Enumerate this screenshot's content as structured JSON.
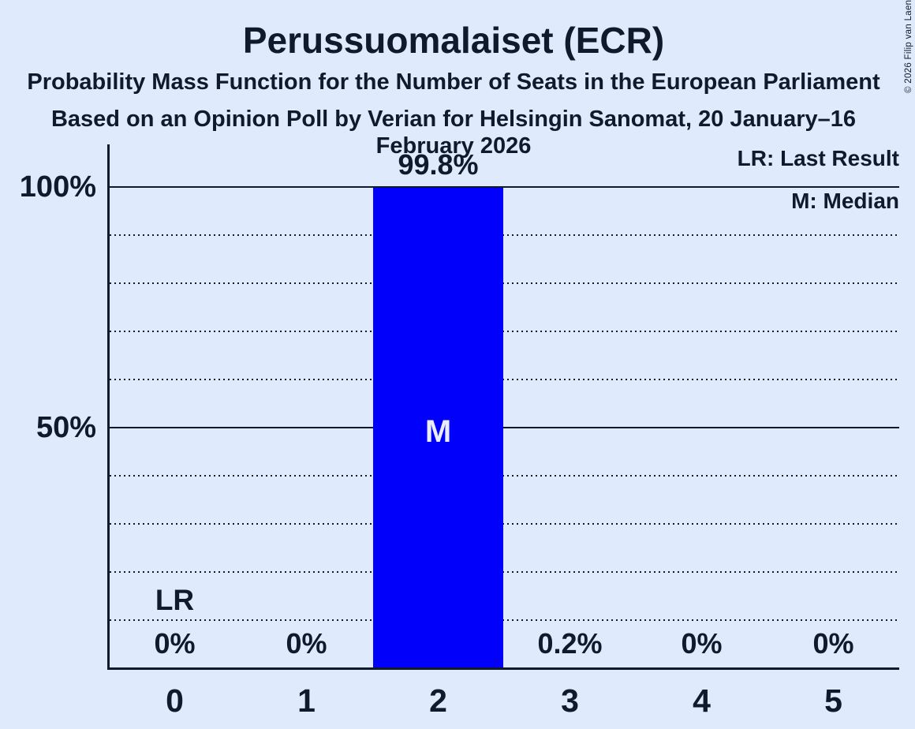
{
  "title": "Perussuomalaiset (ECR)",
  "subtitle": "Probability Mass Function for the Number of Seats in the European Parliament",
  "source_line": "Based on an Opinion Poll by Verian for Helsingin Sanomat, 20 January–16 February 2026",
  "copyright": "© 2026 Filip van Laenen",
  "legend": {
    "last_result": "LR: Last Result",
    "median": "M: Median"
  },
  "colors": {
    "background": "#dfeafc",
    "ink": "#0f1b2d",
    "bar": "#0000fb",
    "bar_text": "#e9ecf9"
  },
  "chart_data": {
    "type": "bar",
    "title": "Probability Mass Function for the Number of Seats in the European Parliament",
    "categories": [
      "0",
      "1",
      "2",
      "3",
      "4",
      "5"
    ],
    "values": [
      0,
      0,
      99.8,
      0.2,
      0,
      0
    ],
    "value_labels": [
      "0%",
      "0%",
      "99.8%",
      "0.2%",
      "0%",
      "0%"
    ],
    "ylim": [
      0,
      100
    ],
    "ytick_labels": [
      "100%",
      "50%"
    ],
    "gridlines_percent": [
      100,
      90,
      80,
      70,
      60,
      50,
      40,
      30,
      20,
      10
    ],
    "grid_style": "dotted with solid lines at 50% and 100%",
    "legend_position": "top-right",
    "annotations": {
      "last_result_marker": "LR",
      "last_result_category": "0",
      "median_marker": "M",
      "median_category": "2"
    }
  }
}
